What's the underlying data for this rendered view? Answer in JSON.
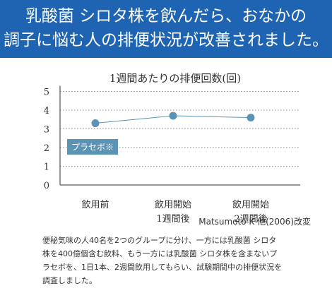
{
  "header": {
    "line1": "乳酸菌 シロタ株を飲んだら、おなかの",
    "line2": "調子に悩む人の排便状況が改善されました。"
  },
  "chart_data": {
    "type": "line",
    "title": "1週間あたりの排便回数(回)",
    "categories": [
      [
        "飲用前"
      ],
      [
        "飲用開始",
        "1週間後"
      ],
      [
        "飲用開始",
        "2週間後"
      ]
    ],
    "series": [
      {
        "name": "プラセボ※",
        "values": [
          3.3,
          3.7,
          3.6
        ]
      }
    ],
    "ylim": [
      0,
      5
    ],
    "yticks": [
      "0",
      "1",
      "2",
      "3",
      "4",
      "5"
    ],
    "grid": true,
    "color": "#5b93b5"
  },
  "source": "Matsumoto K 他(2006)改変",
  "description": [
    "便秘気味の人40名を2つのグループに分け、一方には乳酸菌 シロタ",
    "株を400億個含む飲料、もう一方には乳酸菌 シロタ株を含まないプ",
    "ラセボを、1日1本、2週間飲用してもらい、試験期間中の排便状況を",
    "調査しました。"
  ]
}
